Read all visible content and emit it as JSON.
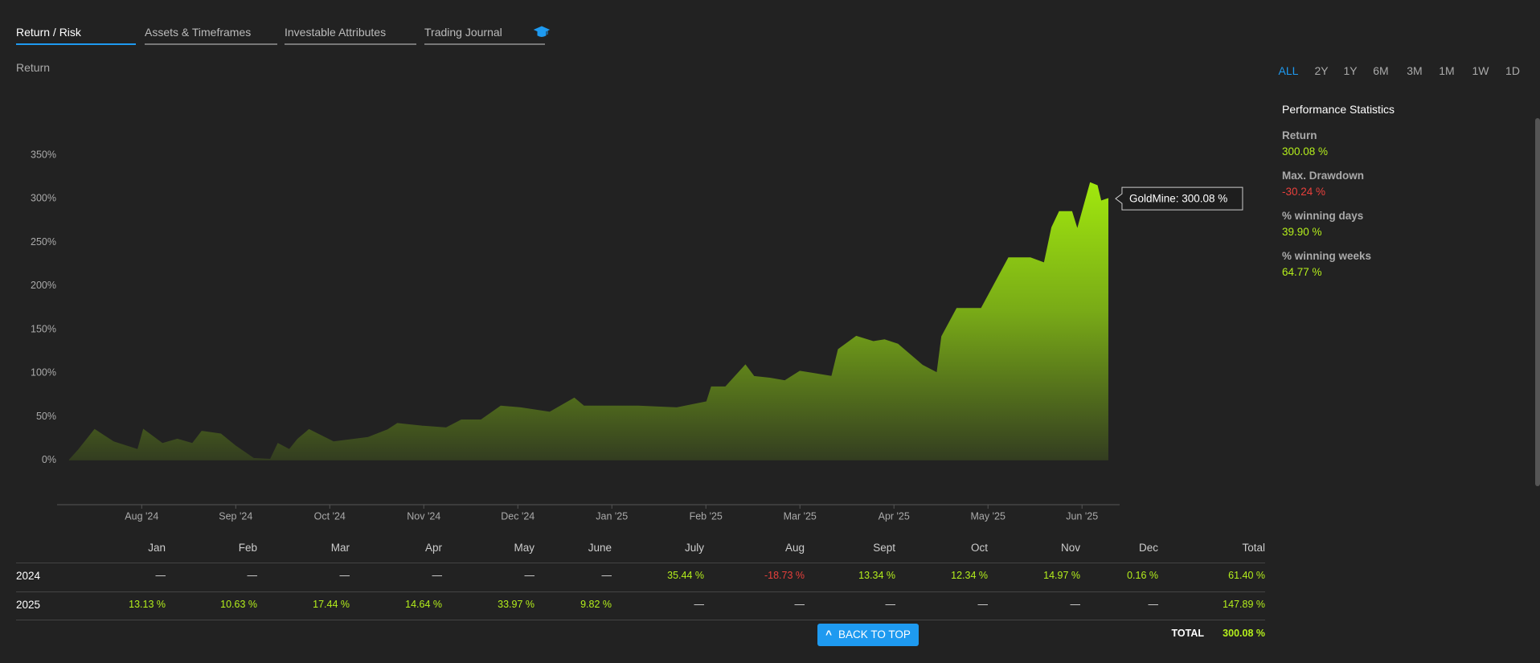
{
  "tabs": [
    "Return / Risk",
    "Assets & Timeframes",
    "Investable Attributes",
    "Trading Journal"
  ],
  "chart_data": {
    "type": "area",
    "y_label": "Return",
    "tooltip": "GoldMine: 300.08 %",
    "series": [
      {
        "color": "#9be00a",
        "x": [
          0.23,
          0.33,
          0.5,
          0.7,
          0.96,
          1.02,
          1.22,
          1.38,
          1.54,
          1.64,
          1.84,
          2.0,
          2.19,
          2.37,
          2.45,
          2.57,
          2.66,
          2.78,
          3.04,
          3.41,
          3.62,
          3.72,
          3.98,
          4.24,
          4.4,
          4.61,
          4.82,
          5.03,
          5.34,
          5.6,
          5.7,
          6.28,
          6.69,
          7.01,
          7.06,
          7.21,
          7.42,
          7.51,
          7.68,
          7.84,
          8.0,
          8.34,
          8.41,
          8.6,
          8.78,
          8.9,
          9.04,
          9.3,
          9.46,
          9.51,
          9.67,
          9.93,
          10.01,
          10.22,
          10.45,
          10.6,
          10.68,
          10.76,
          10.89,
          10.95,
          11.09,
          11.16,
          11.2,
          11.28
        ],
        "values": [
          0,
          12,
          35,
          21,
          12,
          35,
          19,
          24,
          19,
          33,
          30,
          16,
          2,
          1,
          19,
          12,
          24,
          35,
          21,
          26,
          35,
          42,
          39,
          37,
          46,
          46,
          62,
          60,
          55,
          71,
          62,
          62,
          60,
          67,
          84,
          84,
          109,
          96,
          94,
          91,
          102,
          96,
          127,
          142,
          136,
          138,
          133,
          109,
          100,
          142,
          174,
          174,
          190,
          232,
          232,
          226,
          267,
          285,
          285,
          264,
          318,
          315,
          297,
          300.08
        ]
      }
    ],
    "xlim": [
      0.1,
      11.4
    ],
    "xticks": [
      {
        "value": 1,
        "label": "Aug '24"
      },
      {
        "value": 2,
        "label": "Sep '24"
      },
      {
        "value": 3,
        "label": "Oct '24"
      },
      {
        "value": 4,
        "label": "Nov '24"
      },
      {
        "value": 5,
        "label": "Dec '24"
      },
      {
        "value": 6,
        "label": "Jan '25"
      },
      {
        "value": 7,
        "label": "Feb '25"
      },
      {
        "value": 8,
        "label": "Mar '25"
      },
      {
        "value": 9,
        "label": "Apr '25"
      },
      {
        "value": 10,
        "label": "May '25"
      },
      {
        "value": 11,
        "label": "Jun '25"
      }
    ],
    "ylim": [
      -50,
      350
    ],
    "yticks": [
      {
        "value": 0,
        "label": "0%"
      },
      {
        "value": 50,
        "label": "50%"
      },
      {
        "value": 100,
        "label": "100%"
      },
      {
        "value": 150,
        "label": "150%"
      },
      {
        "value": 200,
        "label": "200%"
      },
      {
        "value": 250,
        "label": "250%"
      },
      {
        "value": 300,
        "label": "300%"
      },
      {
        "value": 350,
        "label": "350%"
      }
    ]
  },
  "ranges": [
    "ALL",
    "2Y",
    "1Y",
    "6M",
    "3M",
    "1M",
    "1W",
    "1D"
  ],
  "active_range": 0,
  "stats": {
    "title": "Performance Statistics",
    "items": [
      {
        "label": "Return",
        "value": "300.08 %",
        "color": "#b5f01c"
      },
      {
        "label": "Max. Drawdown",
        "value": "-30.24 %",
        "color": "#e8403c"
      },
      {
        "label": "% winning days",
        "value": "39.90 %",
        "color": "#b5f01c"
      },
      {
        "label": "% winning weeks",
        "value": "64.77 %",
        "color": "#b5f01c"
      }
    ]
  },
  "table": {
    "columns": [
      "Jan",
      "Feb",
      "Mar",
      "Apr",
      "May",
      "June",
      "July",
      "Aug",
      "Sept",
      "Oct",
      "Nov",
      "Dec",
      "Total"
    ],
    "rows": [
      {
        "label": "2024",
        "cells": [
          "—",
          "—",
          "—",
          "—",
          "—",
          "—",
          "35.44 %",
          "-18.73 %",
          "13.34 %",
          "12.34 %",
          "14.97 %",
          "0.16 %",
          "61.40 %"
        ]
      },
      {
        "label": "2025",
        "cells": [
          "13.13 %",
          "10.63 %",
          "17.44 %",
          "14.64 %",
          "33.97 %",
          "9.82 %",
          "—",
          "—",
          "—",
          "—",
          "—",
          "—",
          "147.89 %"
        ]
      }
    ],
    "total_label": "TOTAL",
    "total_value": "300.08 %"
  },
  "button": "BACK TO TOP"
}
